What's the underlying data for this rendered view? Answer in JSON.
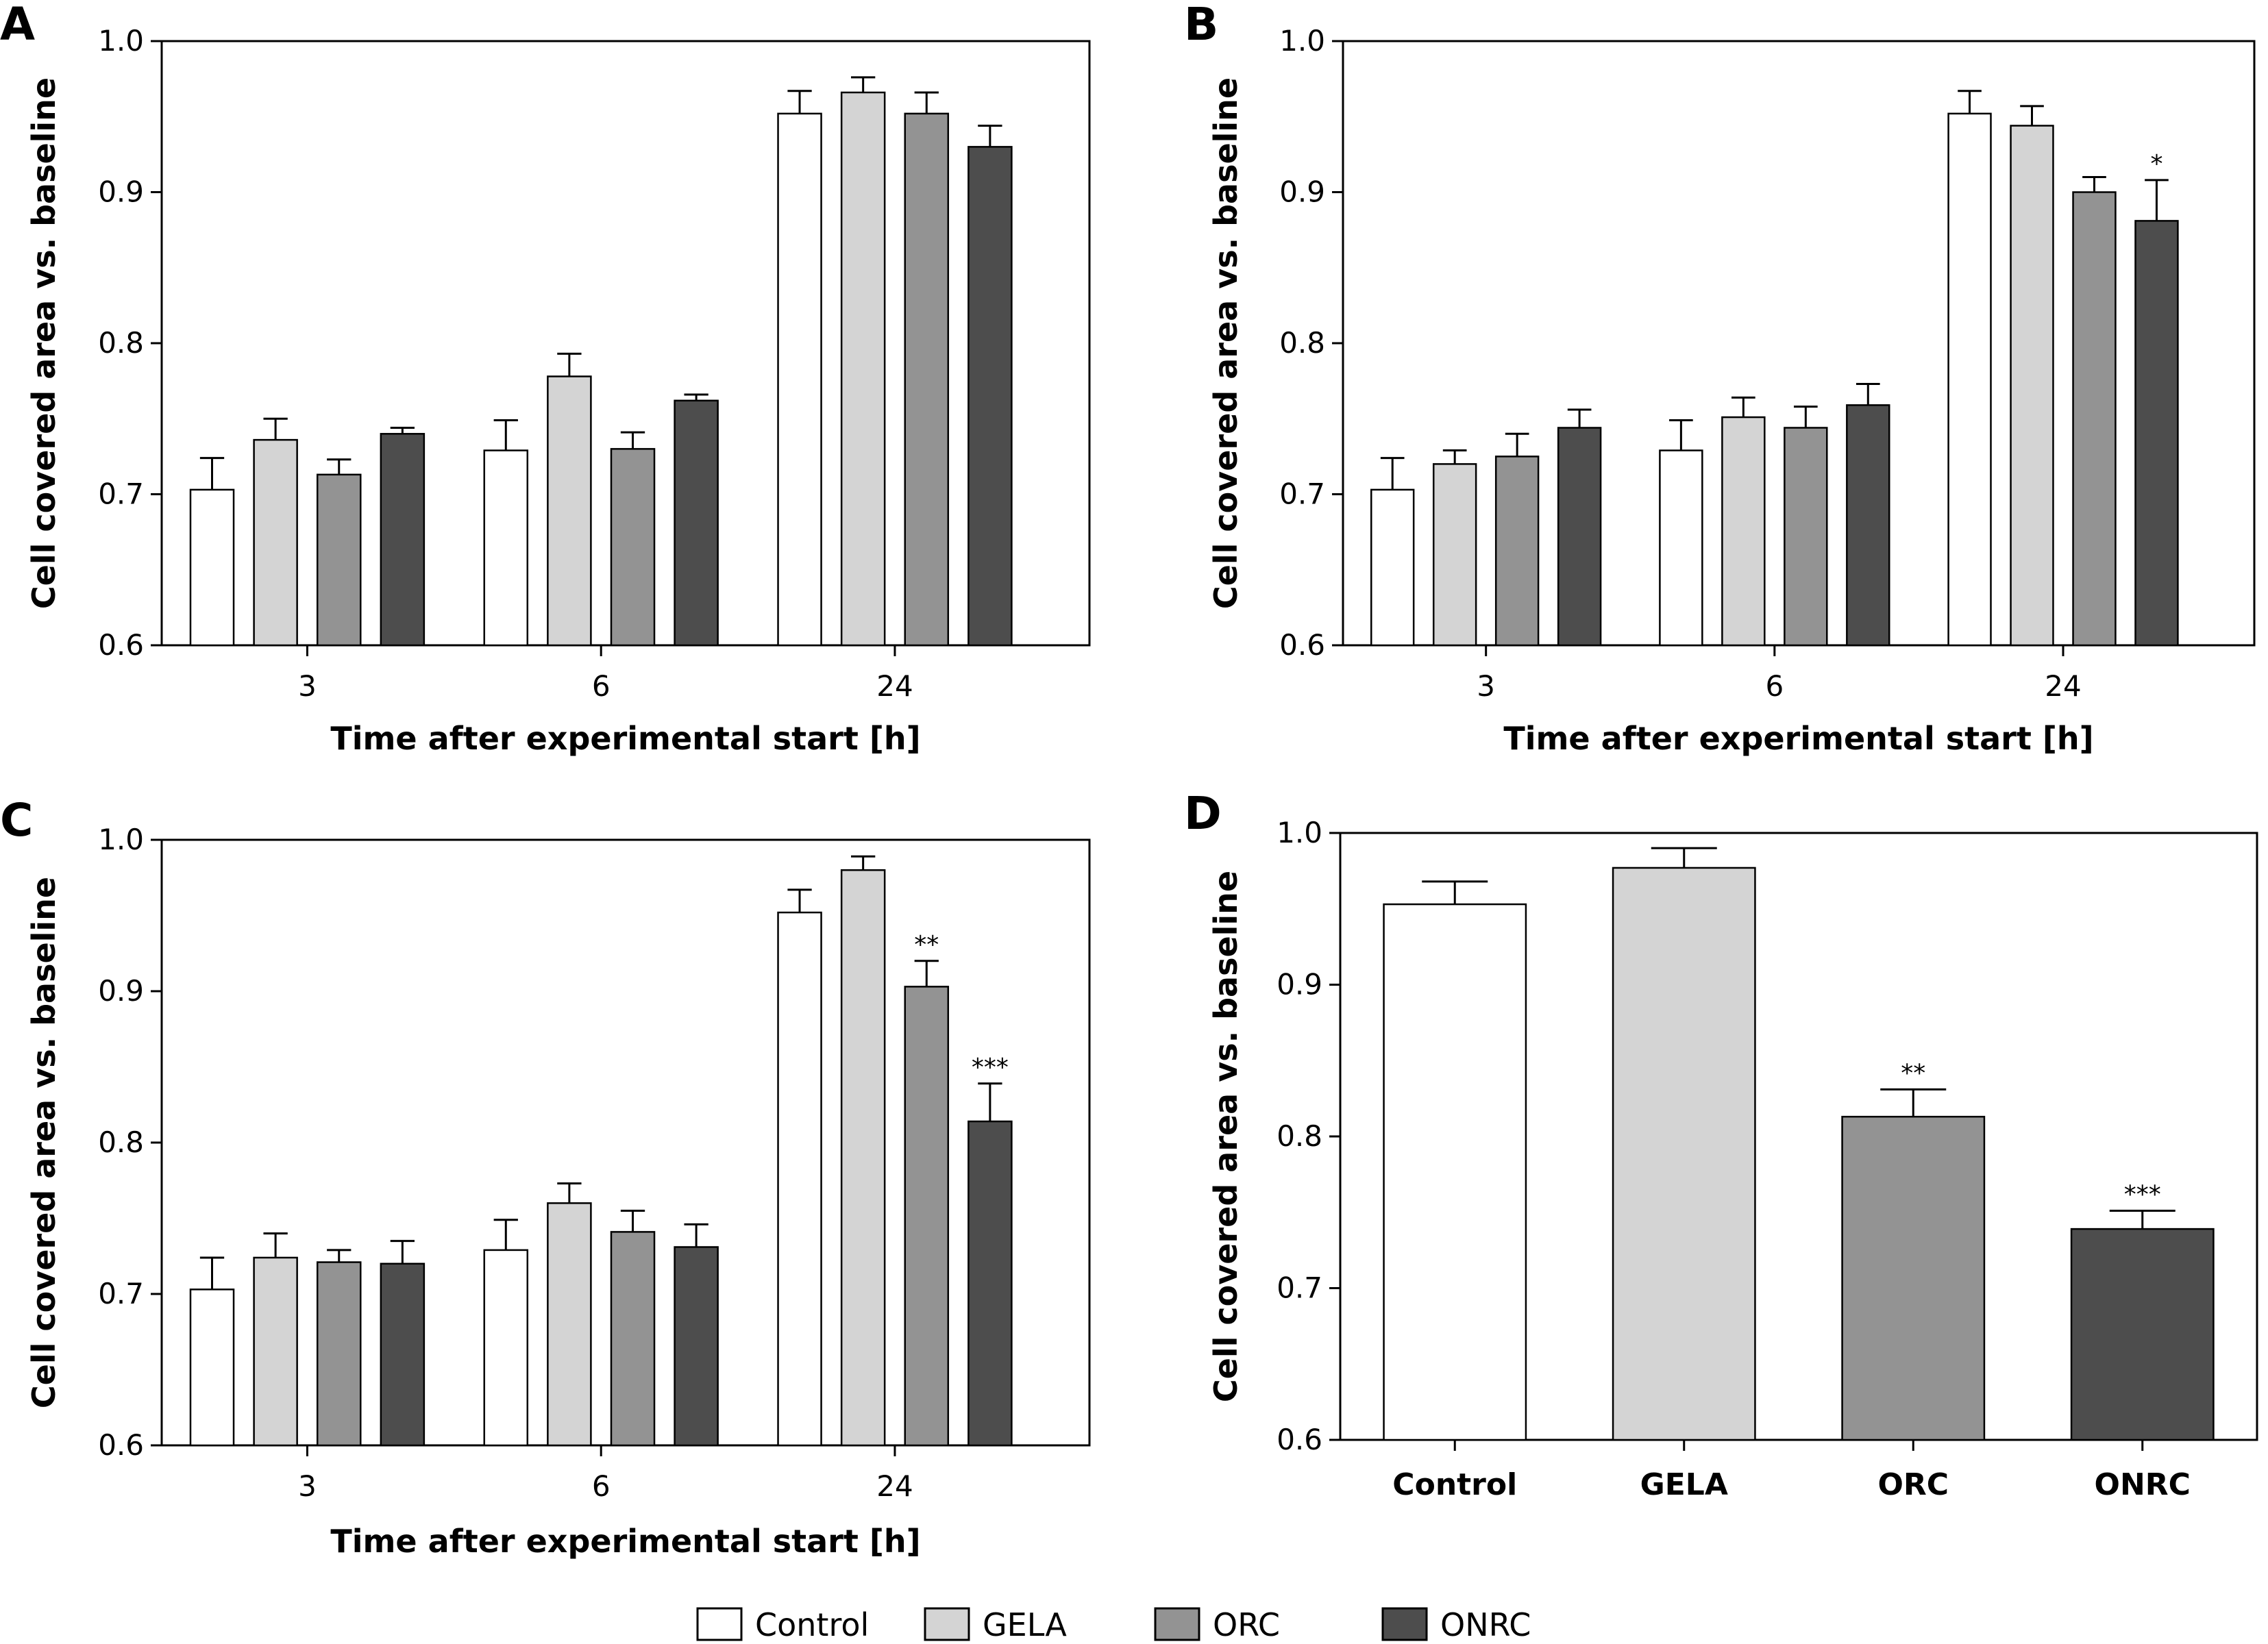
{
  "series_colors": {
    "Control": "#ffffff",
    "GELA": "#d4d4d4",
    "ORC": "#939393",
    "ONRC": "#4d4d4d"
  },
  "legend": [
    "Control",
    "GELA",
    "ORC",
    "ONRC"
  ],
  "chart_data": [
    {
      "panel": "A",
      "type": "bar",
      "xlabel": "Time after experimental start [h]",
      "ylabel": "Cell covered area vs. baseline",
      "ylim": [
        0.6,
        1.0
      ],
      "yticks": [
        "0.6",
        "0.7",
        "0.8",
        "0.9",
        "1.0"
      ],
      "categories": [
        "3",
        "6",
        "24"
      ],
      "series": [
        {
          "name": "Control",
          "values": [
            0.703,
            0.729,
            0.952
          ],
          "errors": [
            0.021,
            0.02,
            0.015
          ],
          "sig": [
            "",
            "",
            ""
          ]
        },
        {
          "name": "GELA",
          "values": [
            0.736,
            0.778,
            0.966
          ],
          "errors": [
            0.014,
            0.015,
            0.01
          ],
          "sig": [
            "",
            "",
            ""
          ]
        },
        {
          "name": "ORC",
          "values": [
            0.713,
            0.73,
            0.952
          ],
          "errors": [
            0.01,
            0.011,
            0.014
          ],
          "sig": [
            "",
            "",
            ""
          ]
        },
        {
          "name": "ONRC",
          "values": [
            0.74,
            0.762,
            0.93
          ],
          "errors": [
            0.004,
            0.004,
            0.014
          ],
          "sig": [
            "",
            "",
            ""
          ]
        }
      ]
    },
    {
      "panel": "B",
      "type": "bar",
      "xlabel": "Time after experimental start [h]",
      "ylabel": "Cell covered area vs. baseline",
      "ylim": [
        0.6,
        1.0
      ],
      "yticks": [
        "0.6",
        "0.7",
        "0.8",
        "0.9",
        "1.0"
      ],
      "categories": [
        "3",
        "6",
        "24"
      ],
      "series": [
        {
          "name": "Control",
          "values": [
            0.703,
            0.729,
            0.952
          ],
          "errors": [
            0.021,
            0.02,
            0.015
          ],
          "sig": [
            "",
            "",
            ""
          ]
        },
        {
          "name": "GELA",
          "values": [
            0.72,
            0.751,
            0.944
          ],
          "errors": [
            0.009,
            0.013,
            0.013
          ],
          "sig": [
            "",
            "",
            ""
          ]
        },
        {
          "name": "ORC",
          "values": [
            0.725,
            0.744,
            0.9
          ],
          "errors": [
            0.015,
            0.014,
            0.01
          ],
          "sig": [
            "",
            "",
            ""
          ]
        },
        {
          "name": "ONRC",
          "values": [
            0.744,
            0.759,
            0.881
          ],
          "errors": [
            0.012,
            0.014,
            0.027
          ],
          "sig": [
            "",
            "",
            "*"
          ]
        }
      ]
    },
    {
      "panel": "C",
      "type": "bar",
      "xlabel": "Time after experimental start [h]",
      "ylabel": "Cell covered area vs. baseline",
      "ylim": [
        0.6,
        1.0
      ],
      "yticks": [
        "0.6",
        "0.7",
        "0.8",
        "0.9",
        "1.0"
      ],
      "categories": [
        "3",
        "6",
        "24"
      ],
      "series": [
        {
          "name": "Control",
          "values": [
            0.703,
            0.729,
            0.952
          ],
          "errors": [
            0.021,
            0.02,
            0.015
          ],
          "sig": [
            "",
            "",
            ""
          ]
        },
        {
          "name": "GELA",
          "values": [
            0.724,
            0.76,
            0.98
          ],
          "errors": [
            0.016,
            0.013,
            0.009
          ],
          "sig": [
            "",
            "",
            ""
          ]
        },
        {
          "name": "ORC",
          "values": [
            0.721,
            0.741,
            0.903
          ],
          "errors": [
            0.008,
            0.014,
            0.017
          ],
          "sig": [
            "",
            "",
            "**"
          ]
        },
        {
          "name": "ONRC",
          "values": [
            0.72,
            0.731,
            0.814
          ],
          "errors": [
            0.015,
            0.015,
            0.025
          ],
          "sig": [
            "",
            "",
            "***"
          ]
        }
      ]
    },
    {
      "panel": "D",
      "type": "bar",
      "xlabel": "",
      "ylabel": "Cell covered area vs. baseline",
      "ylim": [
        0.6,
        1.0
      ],
      "yticks": [
        "0.6",
        "0.7",
        "0.8",
        "0.9",
        "1.0"
      ],
      "categories": [
        "Control",
        "GELA",
        "ORC",
        "ONRC"
      ],
      "values": [
        0.953,
        0.977,
        0.813,
        0.739
      ],
      "errors": [
        0.015,
        0.013,
        0.018,
        0.012
      ],
      "sig": [
        "",
        "",
        "**",
        "***"
      ]
    }
  ]
}
